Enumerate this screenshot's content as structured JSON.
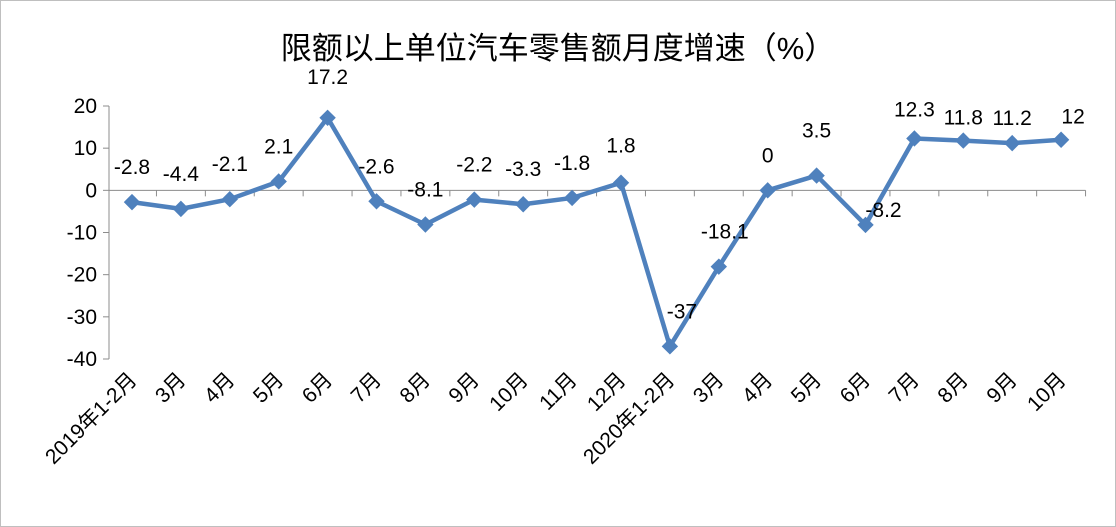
{
  "chart_data": {
    "type": "line",
    "title": "限额以上单位汽车零售额月度增速（%）",
    "xlabel": "",
    "ylabel": "",
    "categories": [
      "2019年1-2月",
      "3月",
      "4月",
      "5月",
      "6月",
      "7月",
      "8月",
      "9月",
      "10月",
      "11月",
      "12月",
      "2020年1-2月",
      "3月",
      "4月",
      "5月",
      "6月",
      "7月",
      "8月",
      "9月",
      "10月"
    ],
    "values": [
      -2.8,
      -4.4,
      -2.1,
      2.1,
      17.2,
      -2.6,
      -8.1,
      -2.2,
      -3.3,
      -1.8,
      1.8,
      -37,
      -18.1,
      0,
      3.5,
      -8.2,
      12.3,
      11.8,
      11.2,
      12
    ],
    "data_labels": [
      "-2.8",
      "-4.4",
      "-2.1",
      "2.1",
      "17.2",
      "-2.6",
      "-8.1",
      "-2.2",
      "-3.3",
      "-1.8",
      "1.8",
      "-37",
      "-18.1",
      "0",
      "3.5",
      "-8.2",
      "12.3",
      "11.8",
      "11.2",
      "12"
    ],
    "ylim": [
      -40,
      20
    ],
    "yticks": [
      20,
      10,
      0,
      -10,
      -20,
      -30,
      -40
    ],
    "ytick_labels": [
      "20",
      "10",
      "0",
      "-10",
      "-20",
      "-30",
      "-40"
    ],
    "grid": false,
    "legend": "none",
    "marker": "diamond",
    "line_color": "#4f81bd"
  }
}
